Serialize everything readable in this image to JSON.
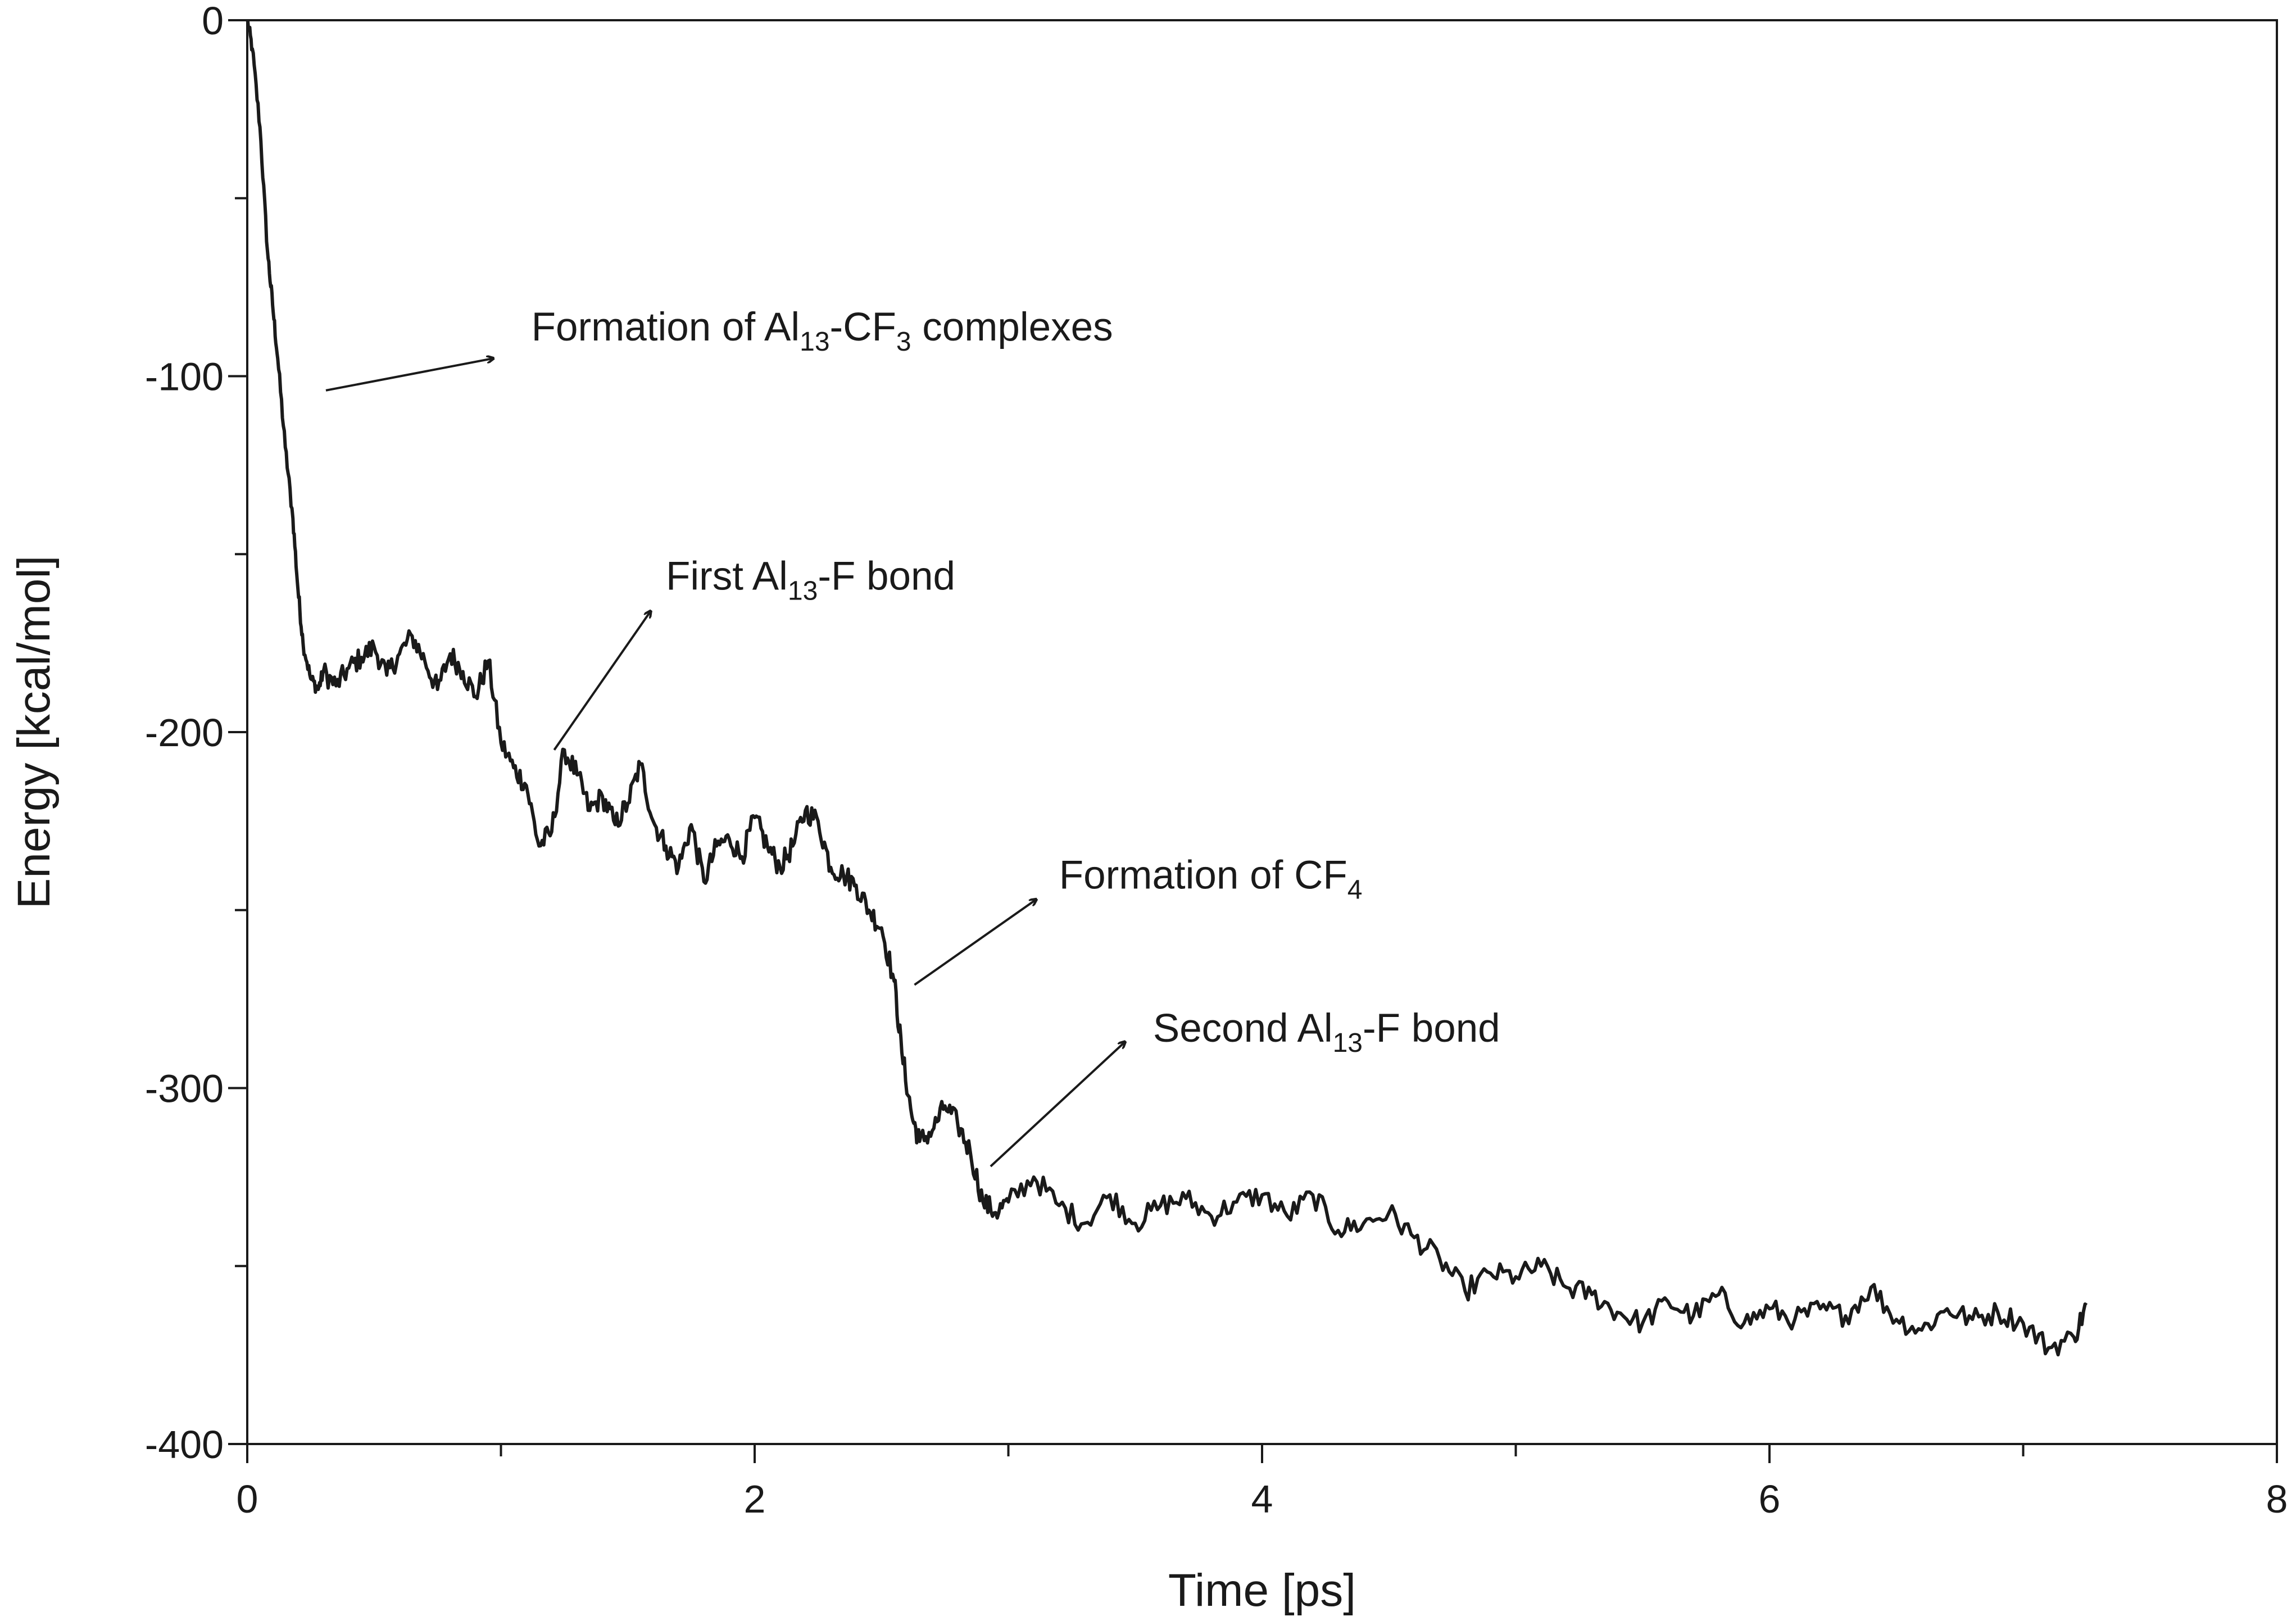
{
  "chart_data": {
    "type": "line",
    "xlabel": "Time [ps]",
    "ylabel": "Energy [kcal/mol]",
    "xlim": [
      0,
      8
    ],
    "ylim": [
      -400,
      0
    ],
    "x_major_ticks": [
      0,
      2,
      4,
      6,
      8
    ],
    "x_minor_ticks": [
      1,
      3,
      5,
      7
    ],
    "y_major_ticks": [
      0,
      -100,
      -200,
      -300,
      -400
    ],
    "y_minor_ticks": [
      -50,
      -150,
      -250,
      -350
    ],
    "grid": false,
    "line_color": "#1a1a1a",
    "series": [
      {
        "x": [
          0,
          0.02,
          0.05,
          0.08,
          0.1,
          0.12,
          0.15,
          0.18,
          0.2,
          0.22,
          0.25,
          0.28,
          0.3,
          0.35,
          0.4,
          0.45,
          0.5,
          0.55,
          0.6,
          0.65,
          0.7,
          0.75,
          0.8,
          0.85,
          0.9,
          0.95,
          1.0,
          1.05,
          1.1,
          1.15,
          1.2,
          1.25,
          1.3,
          1.35,
          1.4,
          1.45,
          1.5,
          1.55,
          1.6,
          1.65,
          1.7,
          1.75,
          1.8,
          1.85,
          1.9,
          1.95,
          2.0,
          2.05,
          2.1,
          2.15,
          2.2,
          2.25,
          2.3,
          2.35,
          2.4,
          2.45,
          2.5,
          2.55,
          2.58,
          2.62,
          2.65,
          2.7,
          2.75,
          2.8,
          2.85,
          2.9,
          2.95,
          3.0,
          3.1,
          3.2,
          3.3,
          3.4,
          3.5,
          3.6,
          3.7,
          3.8,
          3.9,
          4.0,
          4.1,
          4.2,
          4.3,
          4.4,
          4.5,
          4.6,
          4.7,
          4.8,
          4.9,
          5.0,
          5.1,
          5.2,
          5.3,
          5.4,
          5.5,
          5.6,
          5.7,
          5.8,
          5.9,
          6.0,
          6.1,
          6.2,
          6.3,
          6.4,
          6.5,
          6.6,
          6.7,
          6.8,
          6.9,
          7.0,
          7.1,
          7.2,
          7.25
        ],
        "y": [
          0,
          -8,
          -30,
          -65,
          -80,
          -95,
          -120,
          -140,
          -160,
          -175,
          -185,
          -188,
          -183,
          -187,
          -182,
          -179,
          -176,
          -184,
          -178,
          -173,
          -180,
          -188,
          -178,
          -183,
          -190,
          -180,
          -203,
          -210,
          -215,
          -232,
          -228,
          -205,
          -212,
          -222,
          -218,
          -226,
          -220,
          -209,
          -225,
          -232,
          -238,
          -226,
          -242,
          -232,
          -230,
          -235,
          -224,
          -232,
          -238,
          -232,
          -222,
          -225,
          -238,
          -240,
          -243,
          -250,
          -255,
          -270,
          -290,
          -308,
          -315,
          -312,
          -305,
          -310,
          -318,
          -332,
          -335,
          -332,
          -325,
          -333,
          -338,
          -330,
          -338,
          -333,
          -331,
          -336,
          -332,
          -330,
          -336,
          -330,
          -340,
          -338,
          -335,
          -342,
          -348,
          -357,
          -352,
          -353,
          -350,
          -356,
          -358,
          -363,
          -366,
          -360,
          -364,
          -358,
          -366,
          -362,
          -365,
          -362,
          -364,
          -356,
          -365,
          -368,
          -362,
          -365,
          -363,
          -366,
          -373,
          -370,
          -361
        ]
      }
    ],
    "annotations": [
      {
        "text": "Formation of Al",
        "sub": "13",
        "text2": "-CF",
        "sub2": "3",
        "text3": " complexes",
        "x_text": 1.12,
        "y_text": -90,
        "x_arrow_start": 0.31,
        "y_arrow_start": -104,
        "x_arrow_end": 0.97,
        "y_arrow_end": -95
      },
      {
        "text": "First Al",
        "sub": "13",
        "text2": "-F bond",
        "sub2": "",
        "text3": "",
        "x_text": 1.65,
        "y_text": -160,
        "x_arrow_start": 1.21,
        "y_arrow_start": -205,
        "x_arrow_end": 1.59,
        "y_arrow_end": -166
      },
      {
        "text": "Formation of CF",
        "sub": "4",
        "text2": "",
        "sub2": "",
        "text3": "",
        "x_text": 3.2,
        "y_text": -244,
        "x_arrow_start": 2.63,
        "y_arrow_start": -271,
        "x_arrow_end": 3.11,
        "y_arrow_end": -247
      },
      {
        "text": "Second Al",
        "sub": "13",
        "text2": "-F bond",
        "sub2": "",
        "text3": "",
        "x_text": 3.57,
        "y_text": -287,
        "x_arrow_start": 2.93,
        "y_arrow_start": -322,
        "x_arrow_end": 3.46,
        "y_arrow_end": -287
      }
    ]
  }
}
